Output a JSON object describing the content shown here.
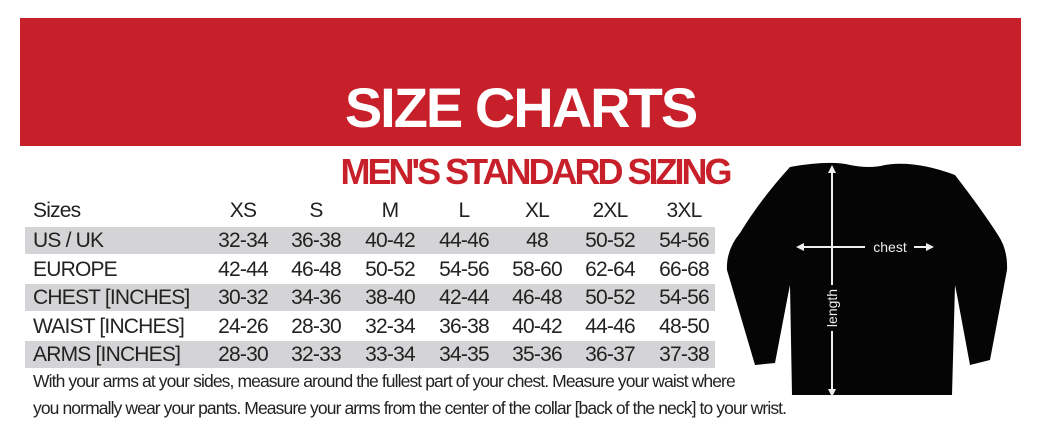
{
  "header": {
    "title": "SIZE CHARTS"
  },
  "subtitle": "MEN'S STANDARD SIZING",
  "table": {
    "columns": [
      "Sizes",
      "XS",
      "S",
      "M",
      "L",
      "XL",
      "2XL",
      "3XL"
    ],
    "rows": [
      {
        "label": "US / UK",
        "values": [
          "32-34",
          "36-38",
          "40-42",
          "44-46",
          "48",
          "50-52",
          "54-56"
        ]
      },
      {
        "label": "EUROPE",
        "values": [
          "42-44",
          "46-48",
          "50-52",
          "54-56",
          "58-60",
          "62-64",
          "66-68"
        ]
      },
      {
        "label": "CHEST [INCHES]",
        "values": [
          "30-32",
          "34-36",
          "38-40",
          "42-44",
          "46-48",
          "50-52",
          "54-56"
        ]
      },
      {
        "label": "WAIST [INCHES]",
        "values": [
          "24-26",
          "28-30",
          "32-34",
          "36-38",
          "40-42",
          "44-46",
          "48-50"
        ]
      },
      {
        "label": "ARMS [INCHES]",
        "values": [
          "28-30",
          "32-33",
          "33-34",
          "34-35",
          "35-36",
          "36-37",
          "37-38"
        ]
      }
    ]
  },
  "notes": [
    "With your arms at your sides, measure around the fullest part of your chest. Measure your waist where",
    "you normally wear your pants. Measure your arms from the center of the collar [back of the neck] to your wrist."
  ],
  "diagram": {
    "chest_label": "chest",
    "length_label": "length"
  },
  "colors": {
    "brand_red": "#c8202a",
    "row_gray": "#d4d4d6"
  }
}
